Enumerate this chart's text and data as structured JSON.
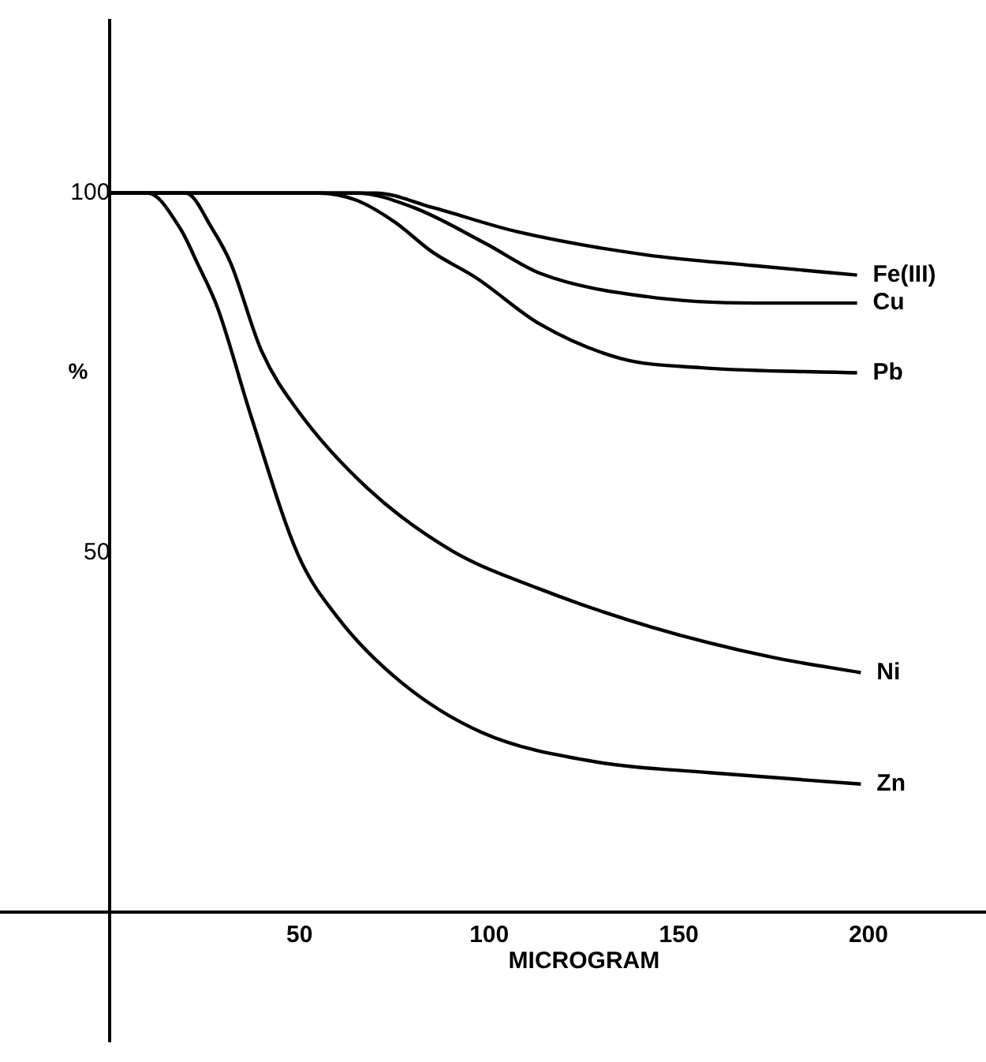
{
  "chart_data": {
    "type": "line",
    "xlabel": "MICROGRAM",
    "ylabel": "%",
    "xlim": [
      -29,
      231
    ],
    "ylim": [
      -18,
      124
    ],
    "xticks": [
      50,
      100,
      150,
      200
    ],
    "yticks": [
      50,
      100
    ],
    "grid": false,
    "legend": false,
    "marker": "none",
    "line_style": "solid",
    "series": [
      {
        "name": "Fe(III)",
        "color": "#000000",
        "x": [
          0,
          40,
          70,
          85,
          107.6,
          141.5,
          170,
          197
        ],
        "values": [
          100,
          100,
          100,
          98,
          94.6,
          91.4,
          89.9,
          88.6
        ]
      },
      {
        "name": "Cu",
        "color": "#000000",
        "x": [
          0,
          40,
          65,
          80,
          99,
          113.6,
          141.5,
          170,
          197
        ],
        "values": [
          100,
          100,
          100,
          98,
          93,
          88.8,
          85.6,
          84.7,
          84.7
        ]
      },
      {
        "name": "Pb",
        "color": "#000000",
        "x": [
          0,
          40,
          55,
          65,
          75,
          85,
          96.6,
          113.6,
          134.7,
          156,
          197
        ],
        "values": [
          100,
          100,
          100,
          99,
          96,
          91.8,
          88.2,
          81.7,
          77,
          75.7,
          75
        ]
      },
      {
        "name": "Ni",
        "color": "#000000",
        "x": [
          0,
          20,
          27,
          31.8,
          40,
          49.6,
          67.8,
          90,
          113,
          143,
          174,
          198
        ],
        "values": [
          100,
          100,
          95,
          90.3,
          78,
          69.7,
          59,
          50.3,
          45,
          39.6,
          35.5,
          33.3
        ]
      },
      {
        "name": "Zn",
        "color": "#000000",
        "x": [
          0,
          10,
          18.6,
          23,
          28.4,
          37.3,
          49.6,
          60,
          76.7,
          98,
          128,
          158,
          198
        ],
        "values": [
          100,
          100,
          95,
          90.3,
          84,
          68.8,
          49.7,
          41,
          32,
          25,
          20.9,
          19.4,
          17.8
        ]
      }
    ]
  }
}
